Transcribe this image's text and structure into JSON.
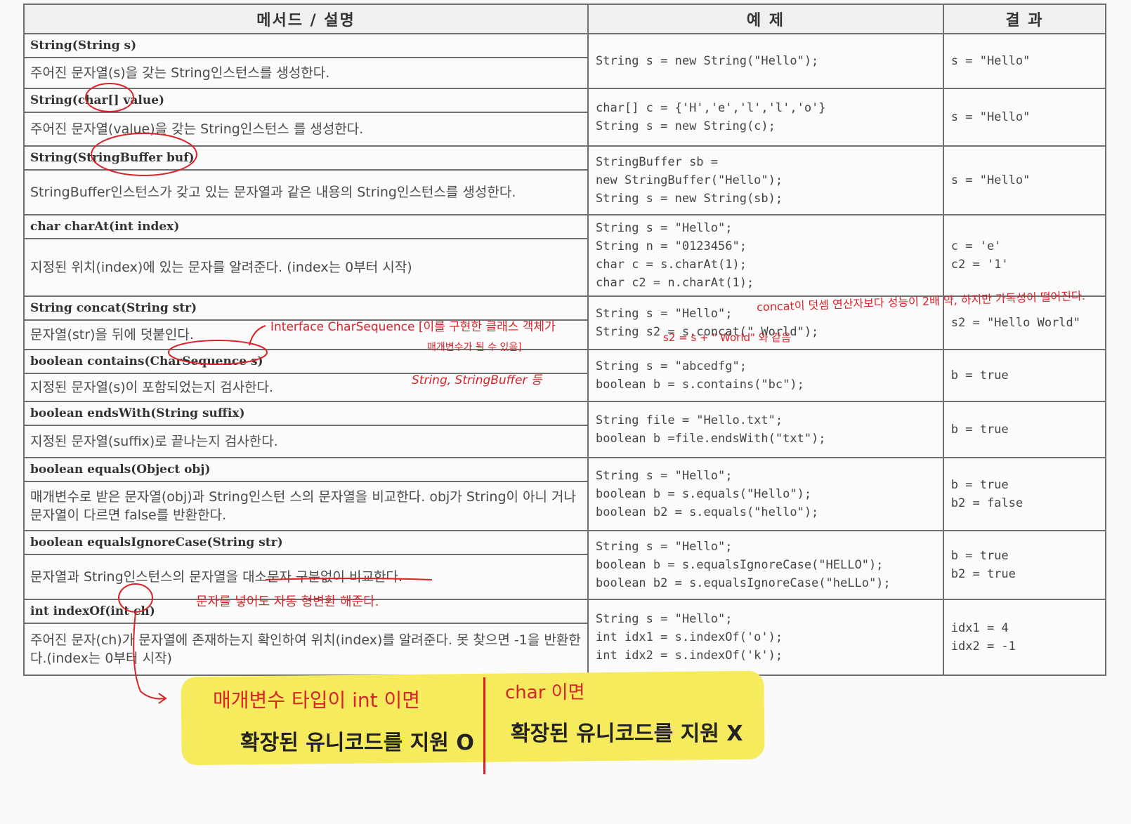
{
  "headers": [
    "메서드 / 설명",
    "예 제",
    "결 과"
  ],
  "rows": [
    {
      "sig": "String(String s)",
      "desc": "주어진 문자열(s)을 갖는 String인스턴스를 생성한다.",
      "example": [
        "String s = new String(\"Hello\");"
      ],
      "result": [
        "s = \"Hello\""
      ]
    },
    {
      "sig": "String(char[] value)",
      "desc": "주어진 문자열(value)을 갖는 String인스턴스 를 생성한다.",
      "example": [
        "char[] c = {'H','e','l','l','o'}",
        "String s = new String(c);"
      ],
      "result": [
        "s = \"Hello\""
      ]
    },
    {
      "sig": "String(StringBuffer buf)",
      "desc": "StringBuffer인스턴스가 갖고 있는 문자열과 같은 내용의 String인스턴스를 생성한다.",
      "example": [
        "StringBuffer sb =",
        "new StringBuffer(\"Hello\");",
        "String s = new String(sb);"
      ],
      "result": [
        "s = \"Hello\""
      ]
    },
    {
      "sig": "char charAt(int index)",
      "desc": "지정된 위치(index)에 있는 문자를 알려준다. (index는 0부터 시작)",
      "example": [
        "String s = \"Hello\";",
        "String n = \"0123456\";",
        "char c = s.charAt(1);",
        "char c2 = n.charAt(1);"
      ],
      "result": [
        "c = 'e'",
        "c2 = '1'"
      ]
    },
    {
      "sig": "String concat(String str)",
      "desc": "문자열(str)을 뒤에 덧붙인다.",
      "example": [
        "String s = \"Hello\";",
        "String s2 = s.concat(\" World\");"
      ],
      "result": [
        "",
        "s2 = \"Hello World\""
      ]
    },
    {
      "sig": "boolean contains(CharSequence s)",
      "desc": "지정된 문자열(s)이 포함되었는지 검사한다.",
      "example": [
        "String s = \"abcedfg\";",
        "boolean b = s.contains(\"bc\");"
      ],
      "result": [
        "b = true"
      ]
    },
    {
      "sig": "boolean endsWith(String suffix)",
      "desc": "지정된 문자열(suffix)로 끝나는지 검사한다.",
      "example": [
        "String file = \"Hello.txt\";",
        "boolean b =file.endsWith(\"txt\");"
      ],
      "result": [
        "b = true"
      ]
    },
    {
      "sig": "boolean equals(Object obj)",
      "desc": "매개변수로 받은 문자열(obj)과 String인스턴 스의 문자열을 비교한다. obj가 String이 아니 거나 문자열이 다르면 false를 반환한다.",
      "example": [
        "String s = \"Hello\";",
        "boolean b = s.equals(\"Hello\");",
        "boolean b2 = s.equals(\"hello\");"
      ],
      "result": [
        "b = true",
        "b2 = false"
      ]
    },
    {
      "sig": "boolean equalsIgnoreCase(String str)",
      "desc": "문자열과 String인스턴스의 문자열을 대소문자 구분없이 비교한다.",
      "example": [
        "String s = \"Hello\";",
        "boolean b = s.equalsIgnoreCase(\"HELLO\");",
        "boolean b2 = s.equalsIgnoreCase(\"heLLo\");"
      ],
      "result": [
        "b = true",
        "b2 = true"
      ]
    },
    {
      "sig": "int indexOf(int ch)",
      "desc": "주어진 문자(ch)가 문자열에 존재하는지 확인하여 위치(index)를 알려준다. 못 찾으면 -1을 반환한다.(index는 0부터 시작)",
      "example": [
        "String s = \"Hello\";",
        "int idx1 = s.indexOf('o');",
        "int idx2 = s.indexOf('k');"
      ],
      "result": [
        "idx1 = 4",
        "idx2 = -1"
      ]
    }
  ],
  "annotations": {
    "concat_note": "concat이 덧셈 연산자보다 성능이 2배 약, 하지만 가독성이 떨어진다.",
    "concat_equiv": "s2 = s + \" World\" 와 같음",
    "interface_note": "Interface CharSequence [이를 구현한 클래스 객체가",
    "impl_note": "매개변수가 될 수 있음]",
    "implementors": "String, StringBuffer 등",
    "autocast_note": "문자를 넣어도 자동 형변환 해준다.",
    "int_title": "매개변수 타입이 int 이면",
    "int_body": "확장된 유니코드를 지원 O",
    "char_title": "char 이면",
    "char_body": "확장된 유니코드를 지원 X"
  }
}
